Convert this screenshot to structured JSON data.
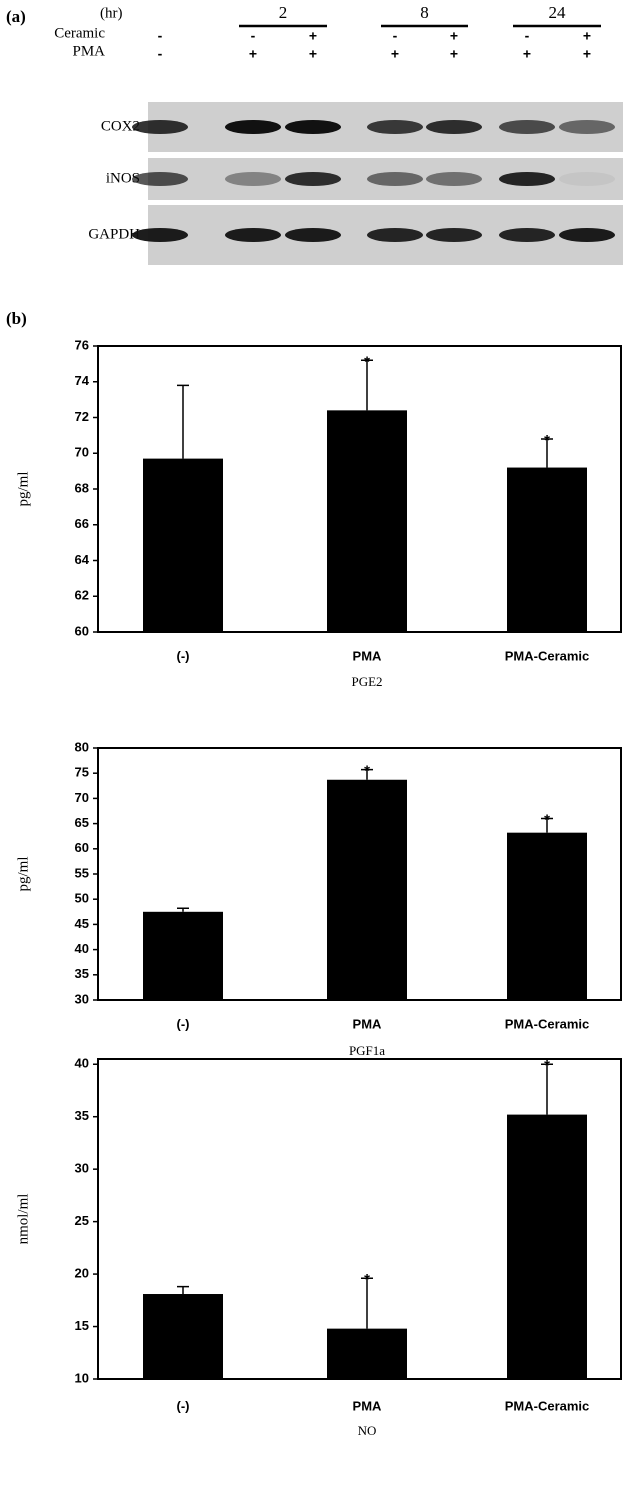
{
  "panel_a": {
    "label": "(a)",
    "hr_label": "(hr)",
    "time_labels": [
      "2",
      "8",
      "24"
    ],
    "row_labels": [
      "Ceramic",
      "PMA"
    ],
    "ceramic": [
      "-",
      "-",
      "+",
      "-",
      "+",
      "-",
      "+"
    ],
    "pma": [
      "-",
      "+",
      "+",
      "+",
      "+",
      "+",
      "+"
    ],
    "bands": [
      "COX2",
      "iNOS",
      "GAPDH"
    ]
  },
  "panel_b": {
    "label": "(b)"
  },
  "chart_data": [
    {
      "type": "bar",
      "title": "PGE2",
      "y_label": "pg/ml",
      "categories": [
        "(-)",
        "PMA",
        "PMA-Ceramic"
      ],
      "values": [
        69.7,
        72.4,
        69.2
      ],
      "errors": [
        4.1,
        2.8,
        1.6
      ],
      "significance": [
        null,
        "*",
        "*"
      ],
      "color": "#000000",
      "ylim": [
        60,
        76
      ],
      "yticks": [
        60,
        62,
        64,
        66,
        68,
        70,
        72,
        74,
        76
      ]
    },
    {
      "type": "bar",
      "title": "PGF1a",
      "y_label": "pg/ml",
      "categories": [
        "(-)",
        "PMA",
        "PMA-Ceramic"
      ],
      "values": [
        47.5,
        73.7,
        63.2
      ],
      "errors": [
        0.7,
        2.0,
        2.8
      ],
      "significance": [
        null,
        "*",
        "*"
      ],
      "color": "#000000",
      "ylim": [
        30,
        80
      ],
      "yticks": [
        30,
        35,
        40,
        45,
        50,
        55,
        60,
        65,
        70,
        75,
        80
      ]
    },
    {
      "type": "bar",
      "title": "NO",
      "y_label": "nmol/ml",
      "categories": [
        "(-)",
        "PMA",
        "PMA-Ceramic"
      ],
      "values": [
        18.1,
        14.8,
        35.2
      ],
      "errors": [
        0.7,
        4.8,
        4.8
      ],
      "significance": [
        null,
        "*",
        "*"
      ],
      "color": "#000000",
      "ylim": [
        10,
        40.5
      ],
      "yticks": [
        10,
        15,
        20,
        25,
        30,
        35,
        40
      ]
    }
  ]
}
